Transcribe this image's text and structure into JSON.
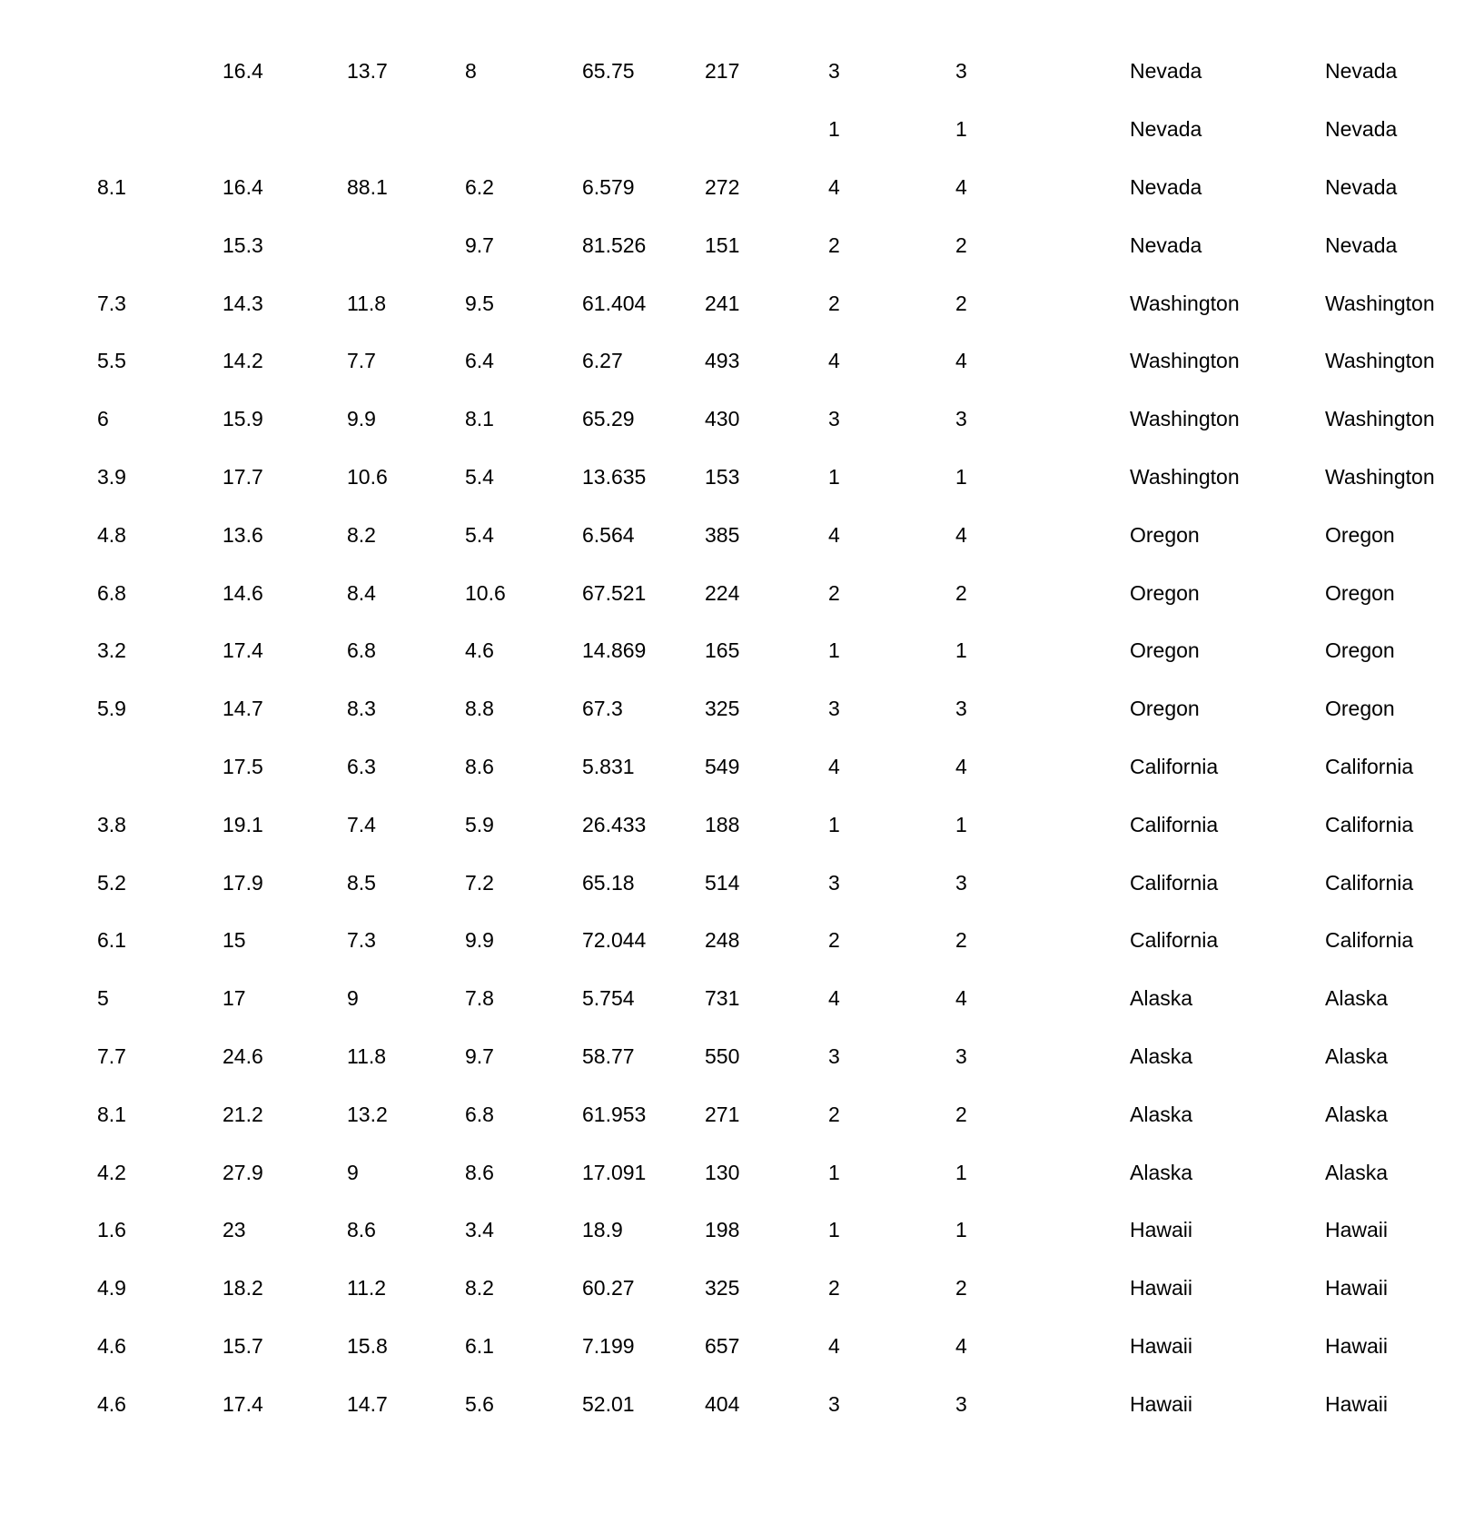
{
  "page": {
    "background": "#ffffff",
    "text_color": "#000000"
  },
  "table": {
    "num_rows": 24,
    "num_columns": 10,
    "rows": [
      [
        "",
        "16.4",
        "13.7",
        "8",
        "65.75",
        "217",
        "3",
        "3",
        "Nevada",
        "Nevada"
      ],
      [
        "",
        "",
        "",
        "",
        "",
        "",
        "1",
        "1",
        "Nevada",
        "Nevada"
      ],
      [
        "8.1",
        "16.4",
        "88.1",
        "6.2",
        "6.579",
        "272",
        "4",
        "4",
        "Nevada",
        "Nevada"
      ],
      [
        "",
        "15.3",
        "",
        "9.7",
        "81.526",
        "151",
        "2",
        "2",
        "Nevada",
        "Nevada"
      ],
      [
        "7.3",
        "14.3",
        "11.8",
        "9.5",
        "61.404",
        "241",
        "2",
        "2",
        "Washington",
        "Washington"
      ],
      [
        "5.5",
        "14.2",
        "7.7",
        "6.4",
        "6.27",
        "493",
        "4",
        "4",
        "Washington",
        "Washington"
      ],
      [
        "6",
        "15.9",
        "9.9",
        "8.1",
        "65.29",
        "430",
        "3",
        "3",
        "Washington",
        "Washington"
      ],
      [
        "3.9",
        "17.7",
        "10.6",
        "5.4",
        "13.635",
        "153",
        "1",
        "1",
        "Washington",
        "Washington"
      ],
      [
        "4.8",
        "13.6",
        "8.2",
        "5.4",
        "6.564",
        "385",
        "4",
        "4",
        "Oregon",
        "Oregon"
      ],
      [
        "6.8",
        "14.6",
        "8.4",
        "10.6",
        "67.521",
        "224",
        "2",
        "2",
        "Oregon",
        "Oregon"
      ],
      [
        "3.2",
        "17.4",
        "6.8",
        "4.6",
        "14.869",
        "165",
        "1",
        "1",
        "Oregon",
        "Oregon"
      ],
      [
        "5.9",
        "14.7",
        "8.3",
        "8.8",
        "67.3",
        "325",
        "3",
        "3",
        "Oregon",
        "Oregon"
      ],
      [
        "",
        "17.5",
        "6.3",
        "8.6",
        "5.831",
        "549",
        "4",
        "4",
        "California",
        "California"
      ],
      [
        "3.8",
        "19.1",
        "7.4",
        "5.9",
        "26.433",
        "188",
        "1",
        "1",
        "California",
        "California"
      ],
      [
        "5.2",
        "17.9",
        "8.5",
        "7.2",
        "65.18",
        "514",
        "3",
        "3",
        "California",
        "California"
      ],
      [
        "6.1",
        "15",
        "7.3",
        "9.9",
        "72.044",
        "248",
        "2",
        "2",
        "California",
        "California"
      ],
      [
        "5",
        "17",
        "9",
        "7.8",
        "5.754",
        "731",
        "4",
        "4",
        "Alaska",
        "Alaska"
      ],
      [
        "7.7",
        "24.6",
        "11.8",
        "9.7",
        "58.77",
        "550",
        "3",
        "3",
        "Alaska",
        "Alaska"
      ],
      [
        "8.1",
        "21.2",
        "13.2",
        "6.8",
        "61.953",
        "271",
        "2",
        "2",
        "Alaska",
        "Alaska"
      ],
      [
        "4.2",
        "27.9",
        "9",
        "8.6",
        "17.091",
        "130",
        "1",
        "1",
        "Alaska",
        "Alaska"
      ],
      [
        "1.6",
        "23",
        "8.6",
        "3.4",
        "18.9",
        "198",
        "1",
        "1",
        "Hawaii",
        "Hawaii"
      ],
      [
        "4.9",
        "18.2",
        "11.2",
        "8.2",
        "60.27",
        "325",
        "2",
        "2",
        "Hawaii",
        "Hawaii"
      ],
      [
        "4.6",
        "15.7",
        "15.8",
        "6.1",
        "7.199",
        "657",
        "4",
        "4",
        "Hawaii",
        "Hawaii"
      ],
      [
        "4.6",
        "17.4",
        "14.7",
        "5.6",
        "52.01",
        "404",
        "3",
        "3",
        "Hawaii",
        "Hawaii"
      ]
    ]
  }
}
